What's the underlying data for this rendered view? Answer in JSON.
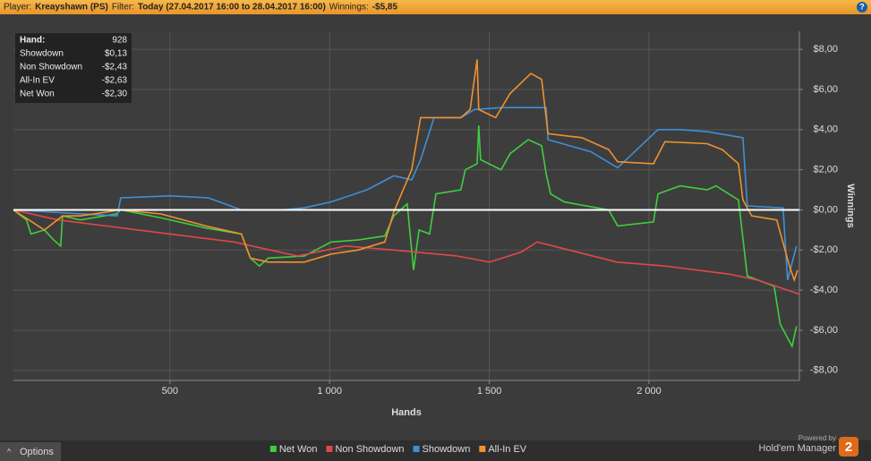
{
  "header": {
    "player_label": "Player:",
    "player": "Kreayshawn (PS)",
    "filter_label": "Filter:",
    "filter": "Today (27.04.2017 16:00 to 28.04.2017 16:00)",
    "winnings_label": "Winnings:",
    "winnings": "-$5,85",
    "help": "?"
  },
  "footer": {
    "options": "Options",
    "powered_by": "Powered by",
    "brand": "Hold'em Manager",
    "logo": "2"
  },
  "chart_data": {
    "type": "line",
    "x_label": "Hands",
    "y_label": "Winnings",
    "xlim": [
      10,
      2471
    ],
    "ylim": [
      -8.5,
      8.9
    ],
    "xticks": [
      {
        "value": 500,
        "label": "500"
      },
      {
        "value": 1000,
        "label": "1 000"
      },
      {
        "value": 1500,
        "label": "1 500"
      },
      {
        "value": 2000,
        "label": "2 000"
      }
    ],
    "yticks": [
      {
        "value": 8,
        "label": "$8,00"
      },
      {
        "value": 6,
        "label": "$6,00"
      },
      {
        "value": 4,
        "label": "$4,00"
      },
      {
        "value": 2,
        "label": "$2,00"
      },
      {
        "value": 0,
        "label": "$0,00"
      },
      {
        "value": -2,
        "label": "-$2,00"
      },
      {
        "value": -4,
        "label": "-$4,00"
      },
      {
        "value": -6,
        "label": "-$6,00"
      },
      {
        "value": -8,
        "label": "-$8,00"
      }
    ],
    "grid": true,
    "zero_line": true,
    "tooltip": {
      "rows": [
        [
          "Hand:",
          "928"
        ],
        [
          "Showdown",
          "$0,13"
        ],
        [
          "Non Showdown",
          "-$2,43"
        ],
        [
          "All-In EV",
          "-$2,63"
        ],
        [
          "Net Won",
          "-$2,30"
        ]
      ]
    },
    "series": [
      {
        "name": "Net Won",
        "color": "#3ecf3e",
        "x": [
          10,
          51,
          65,
          107,
          136,
          158,
          164,
          220,
          332,
          346,
          472,
          612,
          724,
          752,
          780,
          808,
          921,
          1005,
          1089,
          1173,
          1201,
          1243,
          1263,
          1280,
          1313,
          1333,
          1411,
          1425,
          1462,
          1467,
          1473,
          1537,
          1565,
          1622,
          1664,
          1678,
          1692,
          1734,
          1874,
          1902,
          2014,
          2028,
          2098,
          2182,
          2210,
          2280,
          2308,
          2392,
          2411,
          2448,
          2462
        ],
        "values": [
          0,
          -0.5,
          -1.2,
          -1.0,
          -1.5,
          -1.8,
          -0.3,
          -0.5,
          -0.2,
          0,
          -0.4,
          -0.9,
          -1.2,
          -2.4,
          -2.8,
          -2.4,
          -2.3,
          -1.6,
          -1.5,
          -1.3,
          -0.3,
          0.3,
          -3.0,
          -1.0,
          -1.2,
          0.8,
          1.0,
          2.0,
          2.3,
          4.2,
          2.5,
          2.0,
          2.8,
          3.5,
          3.2,
          1.8,
          0.8,
          0.4,
          0,
          -0.8,
          -0.6,
          0.8,
          1.2,
          1.0,
          1.2,
          0.5,
          -3.3,
          -3.8,
          -5.7,
          -6.8,
          -5.8
        ]
      },
      {
        "name": "Non Showdown",
        "color": "#e04848",
        "x": [
          10,
          150,
          400,
          700,
          900,
          1050,
          1200,
          1400,
          1500,
          1600,
          1650,
          1750,
          1900,
          2050,
          2150,
          2250,
          2340,
          2471
        ],
        "values": [
          0,
          -0.5,
          -1.0,
          -1.6,
          -2.3,
          -1.8,
          -2.0,
          -2.3,
          -2.6,
          -2.1,
          -1.6,
          -2.0,
          -2.6,
          -2.8,
          -3.0,
          -3.2,
          -3.5,
          -4.2
        ]
      },
      {
        "name": "Showdown",
        "color": "#3f8fd8",
        "x": [
          10,
          335,
          346,
          500,
          620,
          724,
          850,
          921,
          1005,
          1117,
          1201,
          1257,
          1285,
          1327,
          1411,
          1453,
          1537,
          1678,
          1684,
          1818,
          1902,
          2028,
          2098,
          2182,
          2294,
          2308,
          2420,
          2434,
          2462
        ],
        "values": [
          0,
          -0.3,
          0.6,
          0.7,
          0.6,
          0,
          0,
          0.1,
          0.4,
          1.0,
          1.7,
          1.5,
          2.5,
          4.6,
          4.6,
          5.0,
          5.1,
          5.1,
          3.5,
          2.9,
          2.1,
          4.0,
          4.0,
          3.9,
          3.6,
          0.2,
          0.1,
          -3.5,
          -1.8
        ]
      },
      {
        "name": "All-In EV",
        "color": "#f0922e",
        "x": [
          10,
          107,
          164,
          220,
          346,
          472,
          612,
          724,
          752,
          808,
          921,
          1005,
          1089,
          1173,
          1201,
          1257,
          1285,
          1411,
          1440,
          1462,
          1467,
          1520,
          1565,
          1630,
          1664,
          1684,
          1790,
          1874,
          1902,
          2014,
          2050,
          2182,
          2230,
          2280,
          2294,
          2322,
          2400,
          2440,
          2455,
          2465
        ],
        "values": [
          0,
          -1.0,
          -0.3,
          -0.3,
          0,
          -0.2,
          -0.8,
          -1.2,
          -2.4,
          -2.6,
          -2.6,
          -2.2,
          -2.0,
          -1.6,
          -0.1,
          2.0,
          4.6,
          4.6,
          5.0,
          7.5,
          5.0,
          4.6,
          5.8,
          6.8,
          6.5,
          3.8,
          3.6,
          3.0,
          2.4,
          2.3,
          3.4,
          3.3,
          3.0,
          2.3,
          0.5,
          -0.3,
          -0.5,
          -2.8,
          -3.5,
          -3.0
        ]
      }
    ]
  }
}
